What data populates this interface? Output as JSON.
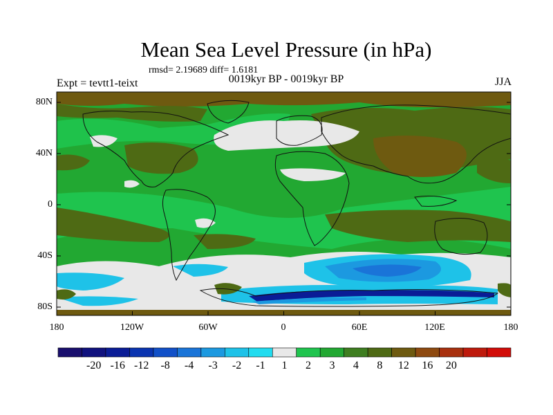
{
  "header": {
    "title": "Mean Sea Level Pressure (in hPa)",
    "stats": "rmsd= 2.19689 diff= 1.6181",
    "period": "0019kyr BP - 0019kyr BP",
    "experiment": "Expt = tevtt1-teixt",
    "season": "JJA"
  },
  "axes": {
    "lat_labels": [
      "80N",
      "40N",
      "0",
      "40S",
      "80S"
    ],
    "lat_values": [
      80,
      40,
      0,
      -40,
      -80
    ],
    "lon_labels": [
      "180",
      "120W",
      "60W",
      "0",
      "60E",
      "120E",
      "180"
    ],
    "lon_values": [
      -180,
      -120,
      -60,
      0,
      60,
      120,
      180
    ],
    "lat_range": [
      -90,
      90
    ],
    "lon_range": [
      -180,
      180
    ]
  },
  "colorbar": {
    "colors": [
      "#1a0f6e",
      "#10127e",
      "#0a1c96",
      "#0a34b0",
      "#1150c8",
      "#1a74d8",
      "#1c99e0",
      "#1ec2e8",
      "#22dcef",
      "#e8e8e8",
      "#1fc44e",
      "#22a832",
      "#3e7e20",
      "#4e6a14",
      "#6e5a10",
      "#8e4a10",
      "#a8300e",
      "#be1a0c",
      "#d20c08"
    ],
    "tick_labels": [
      "-20",
      "-16",
      "-12",
      "-8",
      "-4",
      "-3",
      "-2",
      "-1",
      "1",
      "2",
      "3",
      "4",
      "8",
      "12",
      "16",
      "20"
    ]
  },
  "field_colors": {
    "ocean_base": "#22a832",
    "neutral": "#e8e8e8",
    "light_green": "#1fc44e",
    "olive": "#4e6a14",
    "brown": "#6e5a10",
    "cyan": "#1ec2e8",
    "light_blue": "#1c99e0",
    "blue": "#1a74d8",
    "dark_blue": "#0a1c96",
    "coast": "#111111"
  }
}
